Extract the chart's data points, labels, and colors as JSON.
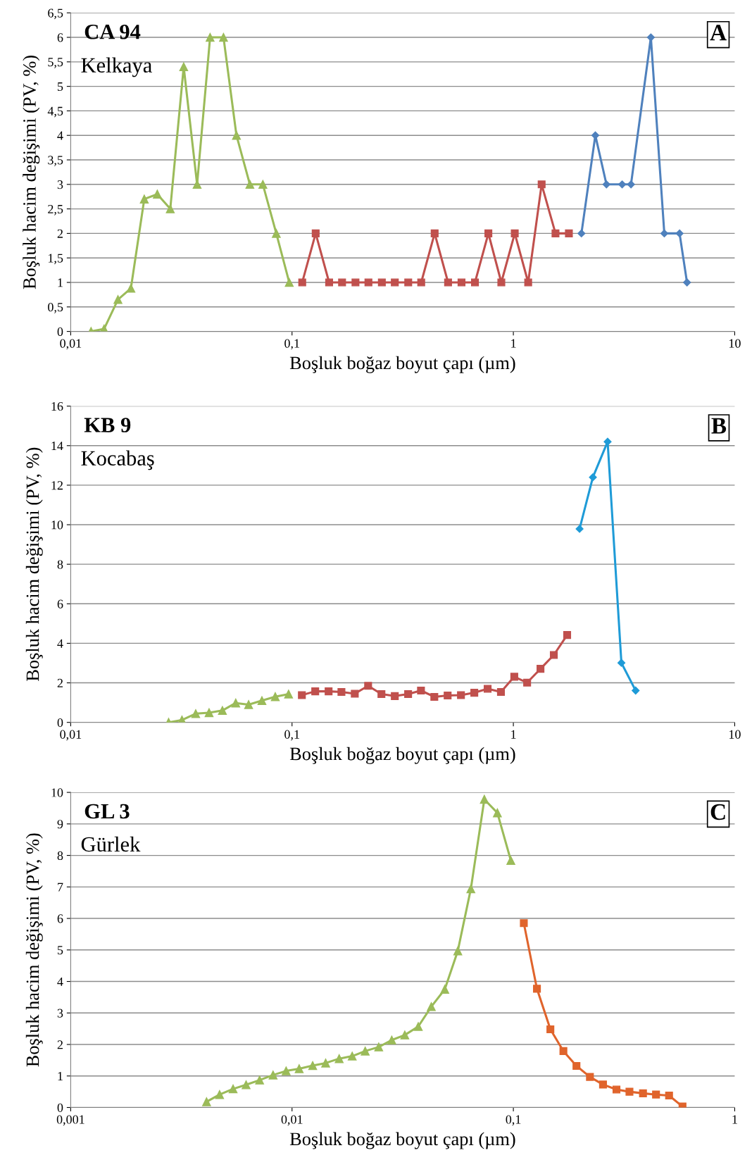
{
  "chart_data": [
    {
      "type": "line",
      "xlabel": "Boşluk boğaz boyut çapı (µm)",
      "ylabel": "Boşluk hacim değişimi (PV, %)",
      "annotations": [
        "CA 94",
        "Kelkaya",
        "A"
      ],
      "log": "x",
      "grid": "y",
      "legend": false,
      "xlim": [
        0.01,
        10
      ],
      "xticks": [
        {
          "value": 0.01,
          "label": "0,01"
        },
        {
          "value": 0.1,
          "label": "0,1"
        },
        1,
        10
      ],
      "ylim": [
        0,
        6.5
      ],
      "yticks": [
        0,
        {
          "value": 0.5,
          "label": "0,5"
        },
        1,
        {
          "value": 1.5,
          "label": "1,5"
        },
        2,
        {
          "value": 2.5,
          "label": "2,5"
        },
        3,
        {
          "value": 3.5,
          "label": "3,5"
        },
        4,
        {
          "value": 4.5,
          "label": "4,5"
        },
        5,
        {
          "value": 5.5,
          "label": "5,5"
        },
        6,
        {
          "value": 6.5,
          "label": "6,5"
        }
      ],
      "series": [
        {
          "color": "#9bbb59",
          "marker": "triangle",
          "x": [
            0.01236,
            0.01415,
            0.01635,
            0.01871,
            0.0215,
            0.02462,
            0.02818,
            0.0324,
            0.03725,
            0.04264,
            0.04902,
            0.0561,
            0.0645,
            0.07383,
            0.0849,
            0.09714
          ],
          "values": [
            0,
            0.05,
            0.65,
            0.88,
            2.7,
            2.8,
            2.5,
            5.4,
            3,
            6,
            6,
            4,
            3,
            3,
            2,
            1
          ]
        },
        {
          "color": "#c0504d",
          "marker": "square",
          "x": [
            0.1112,
            0.1279,
            0.1471,
            0.1683,
            0.1935,
            0.2214,
            0.2546,
            0.2913,
            0.335,
            0.3834,
            0.4409,
            0.507,
            0.5831,
            0.6706,
            0.7711,
            0.8823,
            1.0146,
            1.1667,
            1.342,
            1.55,
            1.782
          ],
          "values": [
            1,
            2,
            1,
            1,
            1,
            1,
            1,
            1,
            1,
            1,
            2,
            1,
            1,
            1,
            2,
            1,
            2,
            1,
            3,
            2,
            2
          ]
        },
        {
          "color": "#4f81bd",
          "marker": "diamond",
          "x": [
            2.03,
            2.346,
            2.634,
            3.101,
            3.4,
            4.181,
            4.808,
            5.636,
            6.088
          ],
          "values": [
            2,
            4,
            3,
            3,
            3,
            6,
            2,
            2,
            1
          ]
        }
      ]
    },
    {
      "type": "line",
      "xlabel": "Boşluk boğaz boyut çapı (µm)",
      "ylabel": "Boşluk hacim değişimi (PV, %)",
      "annotations": [
        "KB 9",
        "Kocabaş",
        "B"
      ],
      "log": "x",
      "grid": "y",
      "legend": false,
      "xlim": [
        0.01,
        10
      ],
      "xticks": [
        {
          "value": 0.01,
          "label": "0,01"
        },
        {
          "value": 0.1,
          "label": "0,1"
        },
        1,
        10
      ],
      "ylim": [
        0,
        16
      ],
      "yticks": [
        0,
        2,
        4,
        6,
        8,
        10,
        12,
        14,
        16
      ],
      "series": [
        {
          "color": "#9bbb59",
          "marker": "triangle",
          "x": [
            0.0277,
            0.03182,
            0.03672,
            0.04219,
            0.04847,
            0.05568,
            0.06366,
            0.07311,
            0.084,
            0.09647
          ],
          "values": [
            0,
            0.12,
            0.44,
            0.49,
            0.6,
            0.98,
            0.9,
            1.1,
            1.3,
            1.43
          ]
        },
        {
          "color": "#c0504d",
          "marker": "square",
          "x": [
            0.1108,
            0.1273,
            0.1463,
            0.1672,
            0.1921,
            0.2207,
            0.2535,
            0.2913,
            0.3346,
            0.3825,
            0.4394,
            0.5047,
            0.5798,
            0.6661,
            0.7651,
            0.8789,
            1.0096,
            1.154,
            1.326,
            1.523,
            1.75
          ],
          "values": [
            1.38,
            1.57,
            1.57,
            1.54,
            1.45,
            1.85,
            1.43,
            1.33,
            1.43,
            1.61,
            1.29,
            1.36,
            1.38,
            1.5,
            1.7,
            1.54,
            2.31,
            2.01,
            2.71,
            3.41,
            4.42
          ]
        },
        {
          "color": "#1f9bd7",
          "marker": "diamond",
          "x": [
            1.991,
            2.287,
            2.666,
            3.077,
            3.568
          ],
          "values": [
            9.79,
            12.4,
            14.2,
            3.01,
            1.61
          ]
        }
      ]
    },
    {
      "type": "line",
      "xlabel": "Boşluk boğaz boyut çapı (µm)",
      "ylabel": "Boşluk hacim değişimi (PV, %)",
      "annotations": [
        "GL 3",
        "Gürlek",
        "C"
      ],
      "log": "x",
      "grid": "y",
      "legend": false,
      "xlim": [
        0.001,
        1
      ],
      "xticks": [
        {
          "value": 0.001,
          "label": "0,001"
        },
        {
          "value": 0.01,
          "label": "0,01"
        },
        {
          "value": 0.1,
          "label": "0,1"
        },
        1
      ],
      "ylim": [
        0,
        10
      ],
      "yticks": [
        0,
        1,
        2,
        3,
        4,
        5,
        6,
        7,
        8,
        9,
        10
      ],
      "series": [
        {
          "color": "#9bbb59",
          "marker": "triangle",
          "x": [
            0.00411,
            0.004707,
            0.005416,
            0.006201,
            0.007137,
            0.00821,
            0.009404,
            0.01077,
            0.0124,
            0.01419,
            0.01633,
            0.0187,
            0.02141,
            0.02464,
            0.02822,
            0.03232,
            0.03718,
            0.04258,
            0.04899,
            0.0561,
            0.06426,
            0.07393,
            0.08467,
            0.09742
          ],
          "values": [
            0.18,
            0.41,
            0.59,
            0.72,
            0.87,
            1.03,
            1.16,
            1.23,
            1.33,
            1.41,
            1.55,
            1.63,
            1.79,
            1.92,
            2.14,
            2.3,
            2.57,
            3.2,
            3.75,
            4.97,
            6.94,
            9.78,
            9.35,
            7.84
          ]
        },
        {
          "color": "#e0642c",
          "marker": "square",
          "x": [
            0.1115,
            0.1278,
            0.147,
            0.1683,
            0.1928,
            0.2218,
            0.2541,
            0.2923,
            0.3346,
            0.3852,
            0.4411,
            0.5052,
            0.581
          ],
          "values": [
            5.85,
            3.77,
            2.48,
            1.79,
            1.32,
            0.97,
            0.73,
            0.57,
            0.5,
            0.45,
            0.41,
            0.38,
            0.03
          ]
        }
      ]
    }
  ]
}
